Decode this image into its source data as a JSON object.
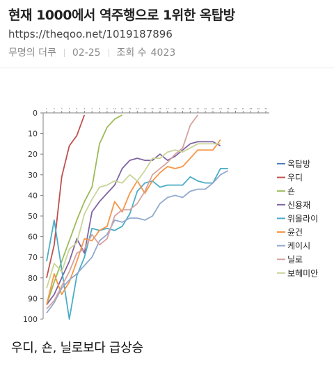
{
  "post": {
    "title": "현재 1000에서 역주행으로 1위한 옥탑방",
    "url": "https://theqoo.net/1019187896",
    "author": "무명의 더쿠",
    "date": "02-25",
    "views_label": "조회 수",
    "views": "4023",
    "caption": "우디, 숀, 닐로보다 급상승"
  },
  "chart_data": {
    "type": "line",
    "x": [
      1,
      2,
      3,
      4,
      5,
      6,
      7,
      8,
      9,
      10,
      11,
      12,
      13,
      14,
      15,
      16,
      17,
      18,
      19,
      20,
      21,
      22,
      23,
      24,
      25,
      26,
      27,
      28,
      29,
      30
    ],
    "y_ticks": [
      0,
      10,
      20,
      30,
      40,
      50,
      60,
      70,
      80,
      90,
      100
    ],
    "ylim": [
      0,
      100
    ],
    "y_inverted": true,
    "grid": false,
    "legend_position": "right",
    "series": [
      {
        "name": "옥탑방",
        "color": "#4f81bd",
        "values": [
          null,
          null,
          null,
          null,
          null,
          null,
          null,
          null,
          null,
          null,
          null,
          null,
          null,
          null,
          null,
          null,
          null,
          null,
          null,
          null,
          null,
          null,
          null,
          null,
          null,
          null,
          null,
          null,
          null,
          null
        ]
      },
      {
        "name": "우디",
        "color": "#c0504d",
        "values": [
          80,
          64,
          31,
          16,
          11,
          1,
          null,
          null,
          null,
          null,
          null,
          null,
          null,
          null,
          null,
          null,
          null,
          null,
          null,
          null,
          null,
          null,
          null,
          null,
          null,
          null,
          null,
          null,
          null,
          null
        ]
      },
      {
        "name": "숀",
        "color": "#9bbb59",
        "values": [
          93,
          82,
          72,
          62,
          52,
          43,
          36,
          15,
          7,
          3,
          1,
          null,
          null,
          null,
          null,
          null,
          null,
          null,
          null,
          null,
          null,
          null,
          null,
          null,
          null,
          null,
          null,
          null,
          null,
          null
        ]
      },
      {
        "name": "신용재",
        "color": "#8064a2",
        "values": [
          93,
          88,
          80,
          72,
          61,
          68,
          48,
          43,
          39,
          35,
          27,
          23,
          22,
          23,
          23,
          20,
          23,
          21,
          18,
          15,
          14,
          14,
          14,
          16,
          null,
          null,
          null,
          null,
          null,
          null
        ]
      },
      {
        "name": "위올라이",
        "color": "#4bacc6",
        "values": [
          72,
          52,
          null,
          100,
          79,
          70,
          56,
          57,
          56,
          57,
          55,
          49,
          38,
          34,
          33,
          36,
          35,
          35,
          35,
          31,
          33,
          34,
          34,
          27,
          27,
          null,
          null,
          null,
          null,
          null
        ]
      },
      {
        "name": "윤건",
        "color": "#f79646",
        "values": [
          93,
          78,
          88,
          82,
          72,
          61,
          62,
          57,
          55,
          43,
          48,
          39,
          33,
          39,
          33,
          29,
          26,
          27,
          26,
          22,
          18,
          18,
          18,
          13,
          null,
          null,
          null,
          null,
          null,
          null
        ]
      },
      {
        "name": "케이시",
        "color": "#92a9cf",
        "values": [
          97,
          92,
          85,
          81,
          78,
          74,
          70,
          62,
          59,
          52,
          53,
          51,
          51,
          52,
          50,
          44,
          41,
          40,
          41,
          38,
          37,
          37,
          34,
          30,
          28,
          null,
          null,
          null,
          null,
          null
        ]
      },
      {
        "name": "닐로",
        "color": "#d5a3a1",
        "values": [
          95,
          91,
          84,
          77,
          68,
          66,
          59,
          64,
          61,
          50,
          47,
          47,
          44,
          38,
          30,
          27,
          24,
          20,
          17,
          6,
          1,
          null,
          null,
          null,
          null,
          null,
          null,
          null,
          null,
          null
        ]
      },
      {
        "name": "보헤미안",
        "color": "#c9d49a",
        "values": [
          85,
          73,
          77,
          66,
          63,
          49,
          42,
          36,
          35,
          33,
          34,
          30,
          33,
          28,
          22,
          22,
          19,
          18,
          19,
          17,
          15,
          15,
          15,
          15,
          null,
          null,
          null,
          null,
          null,
          null
        ]
      }
    ]
  }
}
